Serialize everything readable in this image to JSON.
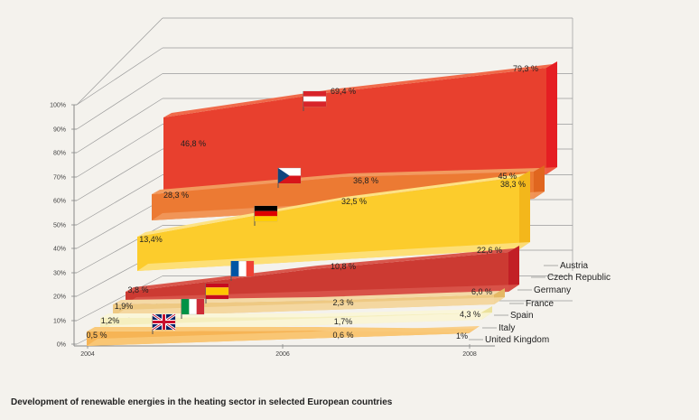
{
  "chart_data": {
    "type": "area",
    "title": "Development of renewable energies in the heating sector in selected European countries",
    "x": [
      "2004",
      "2006",
      "2008"
    ],
    "y_ticks": [
      "0%",
      "10%",
      "20%",
      "30%",
      "40%",
      "50%",
      "60%",
      "70%",
      "80%",
      "90%",
      "100%"
    ],
    "ylim": [
      0,
      100
    ],
    "series": [
      {
        "name": "Austria",
        "flag": "austria-flag",
        "color": "#e8402e",
        "top": "#f06a4a",
        "side": "#e51e23",
        "labels": [
          "46,8 %",
          "69,4 %",
          "79,3 %"
        ],
        "values": [
          46.8,
          69.4,
          79.3
        ]
      },
      {
        "name": "Czech Republic",
        "flag": "czech-flag",
        "color": "#ec7a33",
        "top": "#f29a5e",
        "side": "#e0661f",
        "labels": [
          "28,3 %",
          "36,8 %",
          "38,3 %"
        ],
        "values": [
          28.3,
          36.8,
          38.3
        ]
      },
      {
        "name": "Germany",
        "flag": "germany-flag",
        "color": "#fccc2c",
        "top": "#fde284",
        "side": "#f3b71b",
        "labels": [
          "13,4%",
          "32,5 %",
          "45 %"
        ],
        "values": [
          13.4,
          32.5,
          45.0
        ]
      },
      {
        "name": "France",
        "flag": "france-flag",
        "color": "#cc3a32",
        "top": "#d9574c",
        "side": "#c21f26",
        "labels": [
          "3,8 %",
          "10,8 %",
          "22,6 %"
        ],
        "values": [
          3.8,
          10.8,
          22.6
        ]
      },
      {
        "name": "Spain",
        "flag": "spain-flag",
        "color": "#eec983",
        "top": "#f4d9a6",
        "side": "#e4b864",
        "labels": [
          "1,9%",
          "2,3 %",
          "6,0 %"
        ],
        "values": [
          1.9,
          2.3,
          6.0
        ]
      },
      {
        "name": "Italy",
        "flag": "italy-flag",
        "color": "#f5efbf",
        "top": "#faf6d9",
        "side": "#ece29c",
        "labels": [
          "1,2%",
          "1,7%",
          "4,3 %"
        ],
        "values": [
          1.2,
          1.7,
          4.3
        ]
      },
      {
        "name": "United Kingdom",
        "flag": "uk-flag",
        "color": "#f6b455",
        "top": "#f9c97a",
        "side": "#eea13c",
        "labels": [
          "0,5 %",
          "0,6 %",
          "1%"
        ],
        "values": [
          0.5,
          0.6,
          1.0
        ]
      }
    ]
  }
}
